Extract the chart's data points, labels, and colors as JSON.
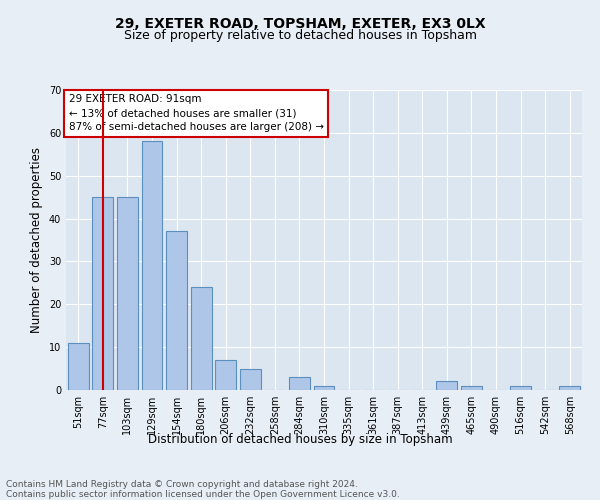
{
  "title1": "29, EXETER ROAD, TOPSHAM, EXETER, EX3 0LX",
  "title2": "Size of property relative to detached houses in Topsham",
  "xlabel": "Distribution of detached houses by size in Topsham",
  "ylabel": "Number of detached properties",
  "footnote1": "Contains HM Land Registry data © Crown copyright and database right 2024.",
  "footnote2": "Contains public sector information licensed under the Open Government Licence v3.0.",
  "bar_labels": [
    "51sqm",
    "77sqm",
    "103sqm",
    "129sqm",
    "154sqm",
    "180sqm",
    "206sqm",
    "232sqm",
    "258sqm",
    "284sqm",
    "310sqm",
    "335sqm",
    "361sqm",
    "387sqm",
    "413sqm",
    "439sqm",
    "465sqm",
    "490sqm",
    "516sqm",
    "542sqm",
    "568sqm"
  ],
  "bar_values": [
    11,
    45,
    45,
    58,
    37,
    24,
    7,
    5,
    0,
    3,
    1,
    0,
    0,
    0,
    0,
    2,
    1,
    0,
    1,
    0,
    1
  ],
  "bar_color": "#aec6e8",
  "bar_edgecolor": "#5a8fc0",
  "vline_x": 1.0,
  "vline_color": "#cc0000",
  "annotation_text": "29 EXETER ROAD: 91sqm\n← 13% of detached houses are smaller (31)\n87% of semi-detached houses are larger (208) →",
  "annotation_box_edgecolor": "#cc0000",
  "annotation_box_facecolor": "#ffffff",
  "ylim": [
    0,
    70
  ],
  "yticks": [
    0,
    10,
    20,
    30,
    40,
    50,
    60,
    70
  ],
  "bg_color": "#e8eef5",
  "plot_bg_color": "#dce6f0",
  "grid_color": "#ffffff",
  "title1_fontsize": 10,
  "title2_fontsize": 9,
  "xlabel_fontsize": 8.5,
  "ylabel_fontsize": 8.5,
  "tick_fontsize": 7,
  "annotation_fontsize": 7.5,
  "footnote_fontsize": 6.5
}
